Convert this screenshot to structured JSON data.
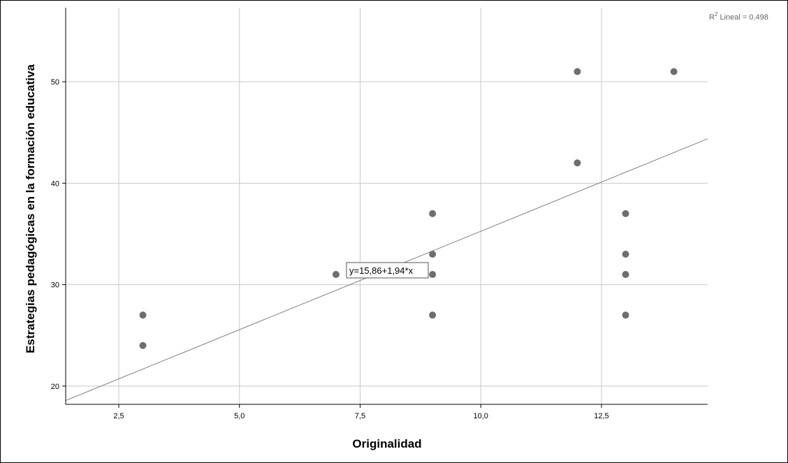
{
  "chart_data": {
    "type": "scatter",
    "xlabel": "Originalidad",
    "ylabel": "Estrategias pedagógicas en la formación educativa",
    "xlim": [
      1.4,
      14.7
    ],
    "ylim": [
      18.2,
      57.3
    ],
    "x_ticks": [
      2.5,
      5.0,
      7.5,
      10.0,
      12.5
    ],
    "x_tick_labels": [
      "2,5",
      "5,0",
      "7,5",
      "10,0",
      "12,5"
    ],
    "y_ticks": [
      20,
      30,
      40,
      50
    ],
    "y_tick_labels": [
      "20",
      "30",
      "40",
      "50"
    ],
    "grid": true,
    "points": [
      {
        "x": 3,
        "y": 27
      },
      {
        "x": 3,
        "y": 24
      },
      {
        "x": 7,
        "y": 31
      },
      {
        "x": 9,
        "y": 37
      },
      {
        "x": 9,
        "y": 33
      },
      {
        "x": 9,
        "y": 31
      },
      {
        "x": 9,
        "y": 27
      },
      {
        "x": 12,
        "y": 51
      },
      {
        "x": 12,
        "y": 42
      },
      {
        "x": 13,
        "y": 37
      },
      {
        "x": 13,
        "y": 33
      },
      {
        "x": 13,
        "y": 31
      },
      {
        "x": 13,
        "y": 27
      },
      {
        "x": 14,
        "y": 51
      }
    ],
    "fit_line": {
      "intercept": 15.86,
      "slope": 1.94
    },
    "equation_label": "y=15,86+1,94*x",
    "r2_prefix": "R",
    "r2_sup": "2",
    "r2_text": " Lineal = 0,498",
    "colors": {
      "points": "#6e6e6e",
      "grid": "#c8c8c8",
      "fit_line": "#808080",
      "axes": "#000000"
    }
  }
}
